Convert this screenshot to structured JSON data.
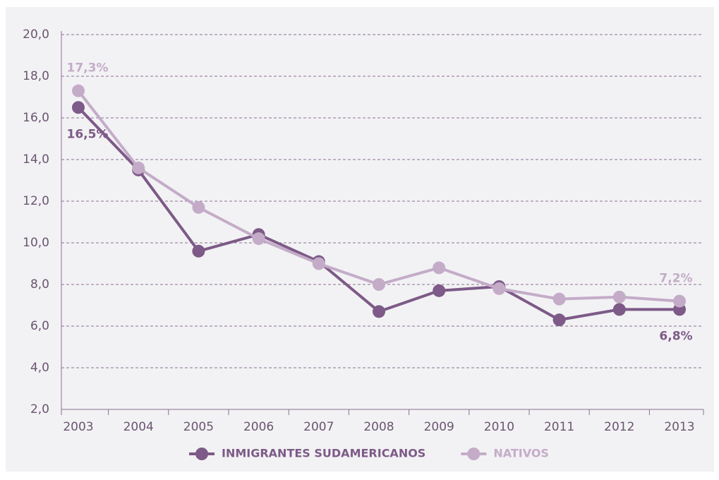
{
  "chart_data": {
    "type": "line",
    "categories": [
      "2003",
      "2004",
      "2005",
      "2006",
      "2007",
      "2008",
      "2009",
      "2010",
      "2011",
      "2012",
      "2013"
    ],
    "series": [
      {
        "name": "INMIGRANTES SUDAMERICANOS",
        "color": "#7d5a87",
        "values": [
          16.5,
          13.5,
          9.6,
          10.4,
          9.1,
          6.7,
          7.7,
          7.9,
          6.3,
          6.8,
          6.8
        ],
        "value_labels": [
          "16,5%",
          null,
          null,
          null,
          null,
          null,
          null,
          null,
          null,
          null,
          "6,8%"
        ]
      },
      {
        "name": "NATIVOS",
        "color": "#c4acc8",
        "values": [
          17.3,
          13.6,
          11.7,
          10.2,
          9.0,
          8.0,
          8.8,
          7.8,
          7.3,
          7.4,
          7.2
        ],
        "value_labels": [
          "17,3%",
          null,
          null,
          null,
          null,
          null,
          null,
          null,
          null,
          null,
          "7,2%"
        ]
      }
    ],
    "ylim": [
      2,
      20
    ],
    "yticks": [
      {
        "value": 2,
        "label": "2,0"
      },
      {
        "value": 4,
        "label": "4,0"
      },
      {
        "value": 6,
        "label": "6,0"
      },
      {
        "value": 8,
        "label": "8,0"
      },
      {
        "value": 10,
        "label": "10,0"
      },
      {
        "value": 12,
        "label": "12,0"
      },
      {
        "value": 14,
        "label": "14,0"
      },
      {
        "value": 16,
        "label": "16,0"
      },
      {
        "value": 18,
        "label": "18,0"
      },
      {
        "value": 20,
        "label": "20,0"
      }
    ],
    "grid": true,
    "legend": "bottom"
  }
}
